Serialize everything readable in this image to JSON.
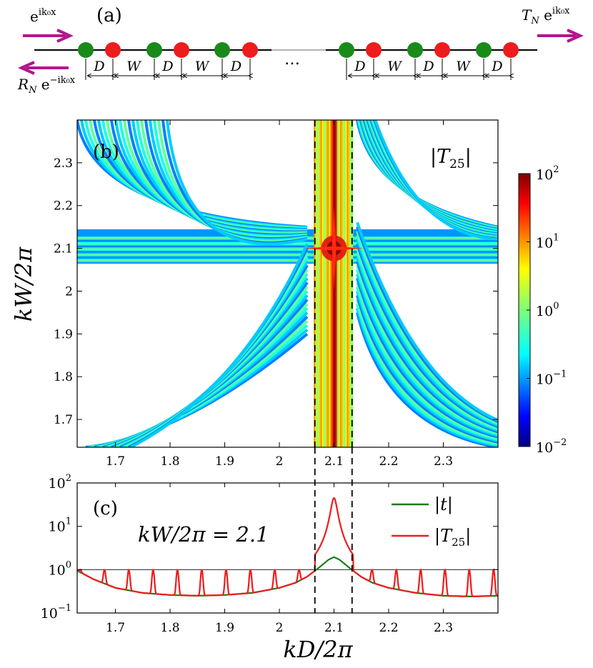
{
  "panel_a": {
    "label": "(a)",
    "incident": "e^{ik₀x}",
    "transmitted": "T_N e^{ik₀x}",
    "reflected": "R_N e^{-ik₀x}",
    "ellipsis": "…",
    "seg_D": "D",
    "seg_W": "W",
    "colors": {
      "site_a": "#1a8a1a",
      "site_b": "#ee1c1c",
      "arrow": "#b4158f",
      "line": "#000000",
      "gap": "#b3b3b3"
    }
  },
  "chart_data": [
    {
      "type": "heatmap",
      "panel_label": "(b)",
      "title": "|T25|",
      "title_parts": {
        "base": "|T",
        "sub": "25",
        "end": "|"
      },
      "xlabel": "kD/2π",
      "ylabel": "kW/2π",
      "xlim": [
        1.63,
        2.4
      ],
      "ylim": [
        1.635,
        2.4
      ],
      "xticks": [
        "1.7",
        "1.8",
        "1.9",
        "2",
        "2.1",
        "2.2",
        "2.3"
      ],
      "xtick_values": [
        1.7,
        1.8,
        1.9,
        2.0,
        2.1,
        2.2,
        2.3
      ],
      "yticks": [
        "1.7",
        "1.8",
        "1.9",
        "2",
        "2.1",
        "2.2",
        "2.3"
      ],
      "ytick_values": [
        1.7,
        1.8,
        1.9,
        2.0,
        2.1,
        2.2,
        2.3
      ],
      "colorbar": {
        "scale": "log",
        "range": [
          0.01,
          100
        ],
        "ticks": [
          {
            "base": "10",
            "exp": "2",
            "value": 100
          },
          {
            "base": "10",
            "exp": "1",
            "value": 10
          },
          {
            "base": "10",
            "exp": "0",
            "value": 1
          },
          {
            "base": "10",
            "exp": "−1",
            "value": 0.1
          },
          {
            "base": "10",
            "exp": "−2",
            "value": 0.01
          }
        ],
        "colormap": "jet"
      },
      "peak": {
        "x": 2.1,
        "y": 2.1
      },
      "dashed_lines_x": [
        2.065,
        2.133
      ]
    },
    {
      "type": "line",
      "panel_label": "(c)",
      "annotation": "kW/2π = 2.1",
      "xlabel": "kD/2π",
      "xlim": [
        1.63,
        2.4
      ],
      "yscale": "log",
      "ylim": [
        0.1,
        100
      ],
      "xticks": [
        "1.7",
        "1.8",
        "1.9",
        "2",
        "2.1",
        "2.2",
        "2.3"
      ],
      "xtick_values": [
        1.7,
        1.8,
        1.9,
        2.0,
        2.1,
        2.2,
        2.3
      ],
      "yticks": [
        {
          "base": "10",
          "exp": "2",
          "value": 100
        },
        {
          "base": "10",
          "exp": "1",
          "value": 10
        },
        {
          "base": "10",
          "exp": "0",
          "value": 1
        },
        {
          "base": "10",
          "exp": "−1",
          "value": 0.1
        }
      ],
      "reference_line_y": 1,
      "dashed_lines_x": [
        2.065,
        2.133
      ],
      "series": [
        {
          "name": "|t|",
          "color": "#1a7d1a",
          "x": [
            1.63,
            1.66,
            1.7,
            1.75,
            1.8,
            1.85,
            1.9,
            1.95,
            2.0,
            2.03,
            2.05,
            2.07,
            2.09,
            2.1,
            2.11,
            2.13,
            2.15,
            2.17,
            2.2,
            2.25,
            2.3,
            2.35,
            2.4
          ],
          "y": [
            0.95,
            0.6,
            0.38,
            0.29,
            0.26,
            0.25,
            0.26,
            0.29,
            0.38,
            0.5,
            0.68,
            1.05,
            1.7,
            1.95,
            1.7,
            1.05,
            0.68,
            0.5,
            0.38,
            0.29,
            0.25,
            0.24,
            0.25
          ]
        },
        {
          "name": "|T25|",
          "color": "#ee1c1c",
          "peak_value": 45,
          "peak_x": 2.1
        }
      ],
      "legend": [
        {
          "label_base": "|t|",
          "label_sub": ""
        },
        {
          "label_base": "|T",
          "label_sub": "25",
          "label_end": "|"
        }
      ],
      "legend_position": "top-right"
    }
  ]
}
